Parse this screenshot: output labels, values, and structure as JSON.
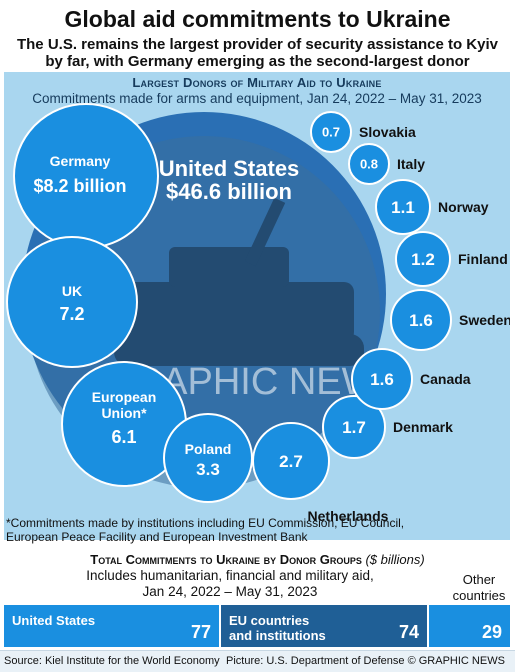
{
  "header": {
    "title": "Global aid commitments to Ukraine",
    "subtitle_line1": "The U.S. remains the largest provider of security assistance to Kyiv",
    "subtitle_line2": "by far, with Germany emerging as the second-largest donor"
  },
  "military_panel": {
    "title": "Largest Donors of Military Aid to Ukraine",
    "subtitle": "Commitments made for arms and equipment, Jan 24, 2022 – May 31, 2023",
    "watermark": "GRAPHIC NEWS",
    "footnote_line1": "*Commitments made by institutions including EU Commission, EU Council,",
    "footnote_line2": "European Peace Facility and European Investment Bank"
  },
  "chart_data": [
    {
      "type": "bubble",
      "title": "Largest Donors of Military Aid to Ukraine",
      "unit": "$ billions",
      "items": [
        {
          "name": "United States",
          "value": 46.6,
          "display": "$46.6 billion"
        },
        {
          "name": "Germany",
          "value": 8.2,
          "display": "$8.2 billion"
        },
        {
          "name": "UK",
          "value": 7.2,
          "display": "7.2"
        },
        {
          "name": "European Union*",
          "value": 6.1,
          "display": "6.1"
        },
        {
          "name": "Poland",
          "value": 3.3,
          "display": "3.3"
        },
        {
          "name": "Netherlands",
          "value": 2.7,
          "display": "2.7"
        },
        {
          "name": "Denmark",
          "value": 1.7,
          "display": "1.7"
        },
        {
          "name": "Canada",
          "value": 1.6,
          "display": "1.6"
        },
        {
          "name": "Sweden",
          "value": 1.6,
          "display": "1.6"
        },
        {
          "name": "Finland",
          "value": 1.2,
          "display": "1.2"
        },
        {
          "name": "Norway",
          "value": 1.1,
          "display": "1.1"
        },
        {
          "name": "Italy",
          "value": 0.8,
          "display": "0.8"
        },
        {
          "name": "Slovakia",
          "value": 0.7,
          "display": "0.7"
        }
      ]
    },
    {
      "type": "bar",
      "title": "Total Commitments to Ukraine by Donor Groups",
      "unit": "$ billions",
      "subtitle": "Includes humanitarian, financial and military aid, Jan 24, 2022 – May 31, 2023",
      "categories": [
        "United States",
        "EU countries and institutions",
        "Other countries"
      ],
      "values": [
        77,
        74,
        29
      ]
    }
  ],
  "totals": {
    "title": "Total Commitments to Ukraine by Donor Groups",
    "unit": "($ billions)",
    "sub_line1": "Includes humanitarian, financial and military aid,",
    "sub_line2": "Jan 24, 2022 – May 31, 2023",
    "other_line1": "Other",
    "other_line2": "countries",
    "us_label": "United States",
    "us_value": "77",
    "eu_label_line1": "EU countries",
    "eu_label_line2": "and institutions",
    "eu_value": "74",
    "other_value": "29"
  },
  "colors": {
    "bubble": "#1a8fe0",
    "bubble_dark": "#1f5f96",
    "panel_bg": "#a9d6ef",
    "us_bar": "#1a8fe0",
    "eu_bar": "#1f5f96",
    "other_bar": "#1a8fe0"
  },
  "footer": {
    "source": "Source: Kiel Institute for the World Economy",
    "credit": "Picture: U.S. Department of Defense  © GRAPHIC NEWS"
  }
}
